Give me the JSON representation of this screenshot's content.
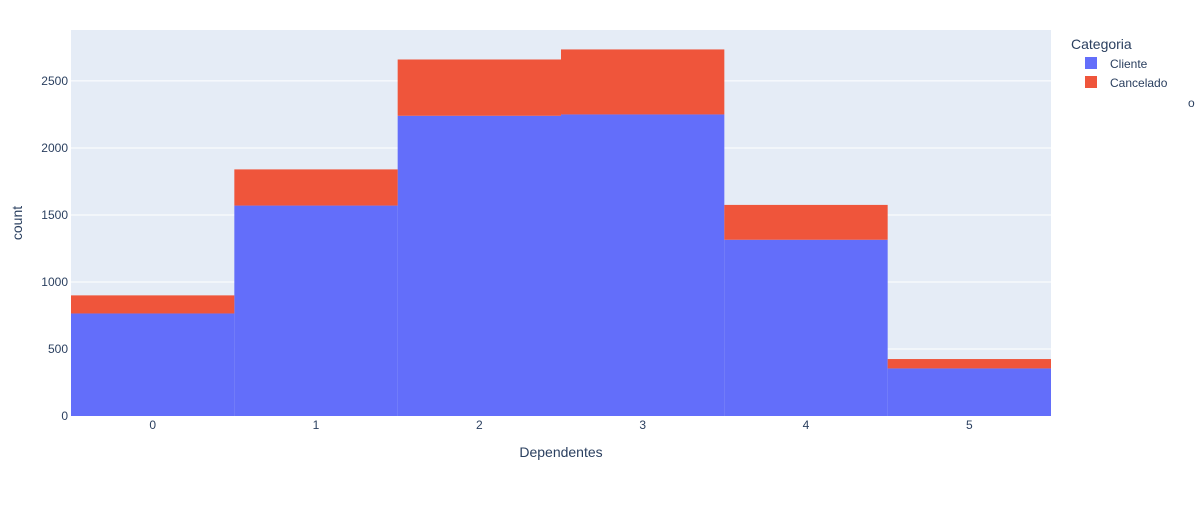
{
  "chart_data": {
    "type": "bar",
    "barmode": "stack",
    "categories": [
      "0",
      "1",
      "2",
      "3",
      "4",
      "5"
    ],
    "x": [
      0,
      1,
      2,
      3,
      4,
      5
    ],
    "series": [
      {
        "name": "Cliente",
        "color": "#636efa",
        "values": [
          765,
          1570,
          2240,
          2250,
          1315,
          355
        ]
      },
      {
        "name": "Cancelado",
        "color": "#ef553b",
        "values": [
          135,
          270,
          420,
          485,
          260,
          70
        ]
      }
    ],
    "xlabel": "Dependentes",
    "ylabel": "count",
    "yticks": [
      0,
      500,
      1000,
      1500,
      2000,
      2500
    ],
    "ylim": [
      0,
      2880
    ],
    "xlim": [
      -0.5,
      5.5
    ],
    "grid": true,
    "plot_bgcolor": "#e5ecf6",
    "legend": {
      "title": "Categoria",
      "position": "top-right",
      "stray_glyph": "o"
    }
  }
}
